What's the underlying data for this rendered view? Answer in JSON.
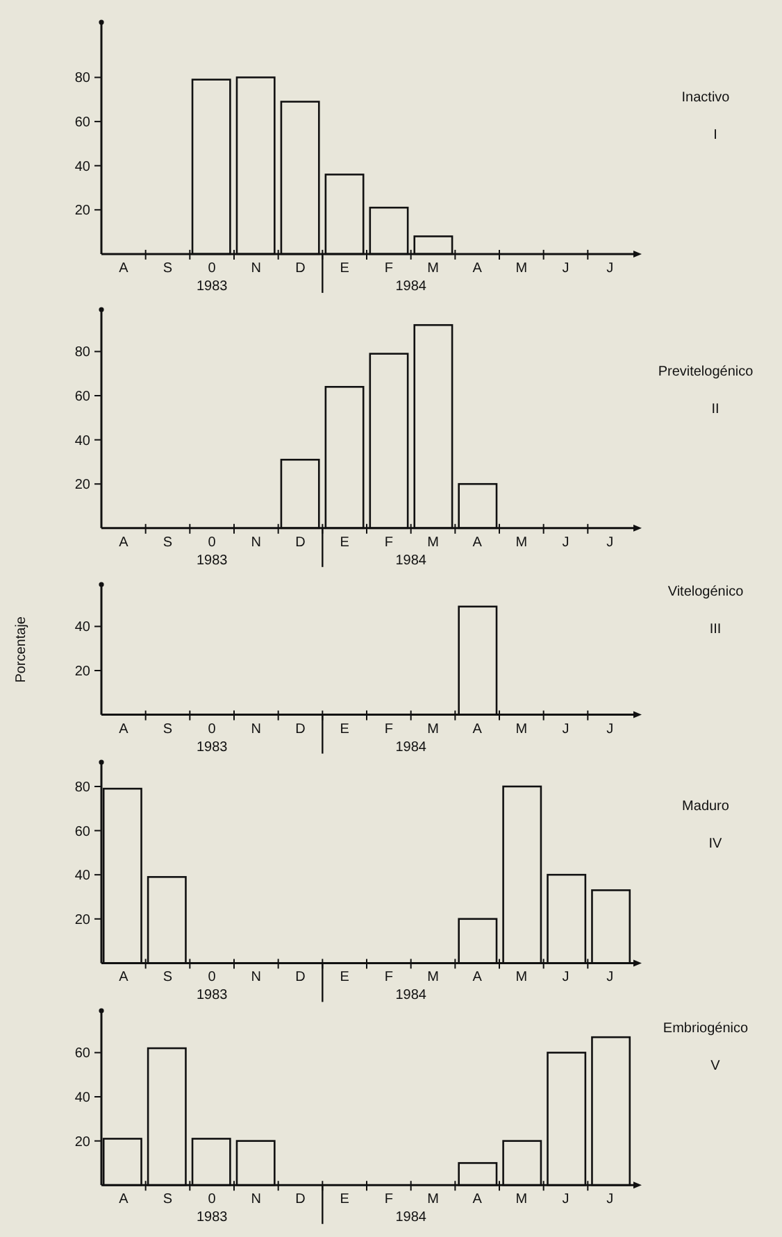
{
  "chart_data": [
    {
      "type": "bar",
      "categories": [
        "A",
        "S",
        "0",
        "N",
        "D",
        "E",
        "F",
        "M",
        "A",
        "M",
        "J",
        "J"
      ],
      "values": [
        0,
        0,
        79,
        80,
        69,
        36,
        21,
        8,
        0,
        0,
        0,
        0
      ],
      "color": "#e8e6da",
      "ylim": [
        0,
        105
      ],
      "yticks": [
        20,
        40,
        60,
        80
      ],
      "annotations": [
        "1983",
        "1984",
        "Inactivo",
        "I"
      ]
    },
    {
      "type": "bar",
      "categories": [
        "A",
        "S",
        "0",
        "N",
        "D",
        "E",
        "F",
        "M",
        "A",
        "M",
        "J",
        "J"
      ],
      "values": [
        0,
        0,
        0,
        0,
        31,
        64,
        79,
        92,
        20,
        0,
        0,
        0
      ],
      "color": "#e8e6da",
      "ylim": [
        0,
        99
      ],
      "yticks": [
        20,
        40,
        60,
        80
      ],
      "annotations": [
        "1983",
        "1984",
        "Previtelogénico",
        "II"
      ]
    },
    {
      "type": "bar",
      "ylabel": "Porcentaje",
      "categories": [
        "A",
        "S",
        "0",
        "N",
        "D",
        "E",
        "F",
        "M",
        "A",
        "M",
        "J",
        "J"
      ],
      "values": [
        0,
        0,
        0,
        0,
        0,
        0,
        0,
        0,
        49,
        0,
        0,
        0
      ],
      "color": "#e8e6da",
      "ylim": [
        0,
        59
      ],
      "yticks": [
        20,
        40
      ],
      "annotations": [
        "1983",
        "1984",
        "Vitelogénico",
        "III"
      ]
    },
    {
      "type": "bar",
      "categories": [
        "A",
        "S",
        "0",
        "N",
        "D",
        "E",
        "F",
        "M",
        "A",
        "M",
        "J",
        "J"
      ],
      "values": [
        79,
        39,
        0,
        0,
        0,
        0,
        0,
        0,
        20,
        80,
        40,
        33
      ],
      "color": "#e8e6da",
      "ylim": [
        0,
        91
      ],
      "yticks": [
        20,
        40,
        60,
        80
      ],
      "annotations": [
        "1983",
        "1984",
        "Maduro",
        "IV"
      ]
    },
    {
      "type": "bar",
      "categories": [
        "A",
        "S",
        "0",
        "N",
        "D",
        "E",
        "F",
        "M",
        "A",
        "M",
        "J",
        "J"
      ],
      "values": [
        21,
        62,
        21,
        20,
        0,
        0,
        0,
        0,
        10,
        20,
        60,
        67
      ],
      "color": "#e8e6da",
      "ylim": [
        0,
        79
      ],
      "yticks": [
        20,
        40,
        60
      ],
      "annotations": [
        "1983",
        "1984",
        "Embriogénico",
        "V"
      ]
    }
  ]
}
